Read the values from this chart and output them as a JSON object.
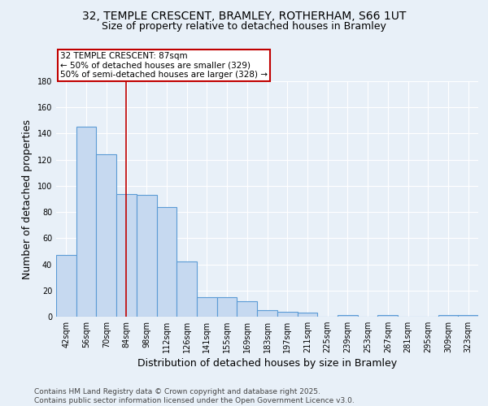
{
  "title": "32, TEMPLE CRESCENT, BRAMLEY, ROTHERHAM, S66 1UT",
  "subtitle": "Size of property relative to detached houses in Bramley",
  "xlabel": "Distribution of detached houses by size in Bramley",
  "ylabel": "Number of detached properties",
  "categories": [
    "42sqm",
    "56sqm",
    "70sqm",
    "84sqm",
    "98sqm",
    "112sqm",
    "126sqm",
    "141sqm",
    "155sqm",
    "169sqm",
    "183sqm",
    "197sqm",
    "211sqm",
    "225sqm",
    "239sqm",
    "253sqm",
    "267sqm",
    "281sqm",
    "295sqm",
    "309sqm",
    "323sqm"
  ],
  "values": [
    47,
    145,
    124,
    94,
    93,
    84,
    42,
    15,
    15,
    12,
    5,
    4,
    3,
    0,
    1,
    0,
    1,
    0,
    0,
    1,
    1
  ],
  "bar_color": "#c6d9f0",
  "bar_edge_color": "#5b9bd5",
  "vertical_line_x": 2.98,
  "vline_color": "#c00000",
  "annotation_text": "32 TEMPLE CRESCENT: 87sqm\n← 50% of detached houses are smaller (329)\n50% of semi-detached houses are larger (328) →",
  "annotation_box_color": "#ffffff",
  "annotation_box_edge_color": "#c00000",
  "ylim": [
    0,
    180
  ],
  "yticks": [
    0,
    20,
    40,
    60,
    80,
    100,
    120,
    140,
    160,
    180
  ],
  "footnote": "Contains HM Land Registry data © Crown copyright and database right 2025.\nContains public sector information licensed under the Open Government Licence v3.0.",
  "bg_color": "#e8f0f8",
  "plot_bg_color": "#e8f0f8",
  "title_fontsize": 10,
  "subtitle_fontsize": 9,
  "axis_label_fontsize": 9,
  "tick_fontsize": 7,
  "footnote_fontsize": 6.5,
  "ann_fontsize": 7.5
}
